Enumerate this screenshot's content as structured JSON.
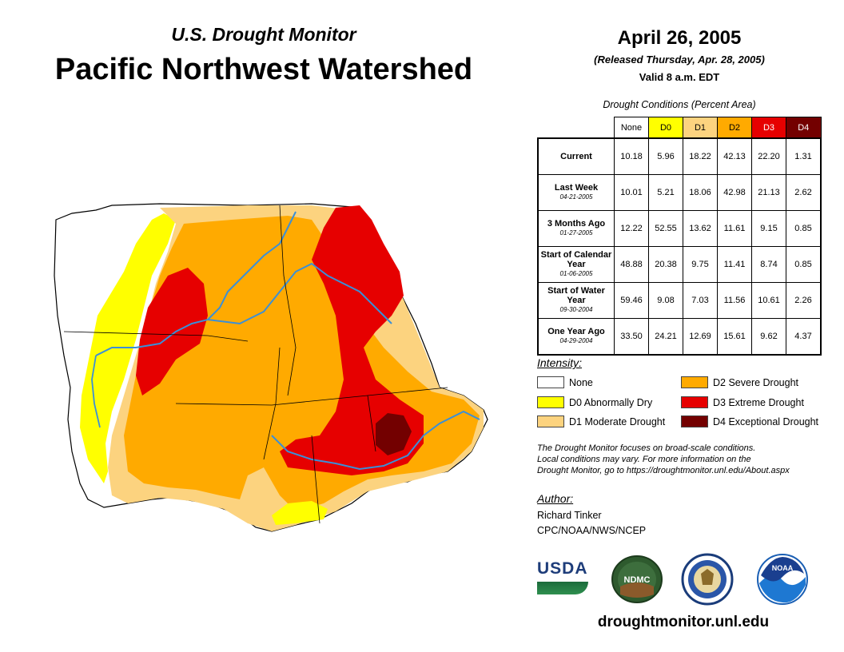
{
  "header": {
    "subtitle": "U.S. Drought Monitor",
    "title": "Pacific Northwest Watershed",
    "date": "April 26, 2005",
    "released": "(Released Thursday, Apr. 28, 2005)",
    "valid": "Valid 8 a.m. EDT"
  },
  "table": {
    "caption": "Drought Conditions (Percent Area)",
    "columns": [
      "None",
      "D0",
      "D1",
      "D2",
      "D3",
      "D4"
    ],
    "column_colors": [
      "#ffffff",
      "#ffff00",
      "#fcd37f",
      "#ffaa00",
      "#e60000",
      "#730000"
    ],
    "rows": [
      {
        "label": "Current",
        "date": "",
        "values": [
          "10.18",
          "5.96",
          "18.22",
          "42.13",
          "22.20",
          "1.31"
        ]
      },
      {
        "label": "Last Week",
        "date": "04-21-2005",
        "values": [
          "10.01",
          "5.21",
          "18.06",
          "42.98",
          "21.13",
          "2.62"
        ]
      },
      {
        "label": "3 Months Ago",
        "date": "01-27-2005",
        "values": [
          "12.22",
          "52.55",
          "13.62",
          "11.61",
          "9.15",
          "0.85"
        ]
      },
      {
        "label": "Start of Calendar Year",
        "date": "01-06-2005",
        "values": [
          "48.88",
          "20.38",
          "9.75",
          "11.41",
          "8.74",
          "0.85"
        ]
      },
      {
        "label": "Start of Water Year",
        "date": "09-30-2004",
        "values": [
          "59.46",
          "9.08",
          "7.03",
          "11.56",
          "10.61",
          "2.26"
        ]
      },
      {
        "label": "One Year Ago",
        "date": "04-29-2004",
        "values": [
          "33.50",
          "24.21",
          "12.69",
          "15.61",
          "9.62",
          "4.37"
        ]
      }
    ]
  },
  "legend": {
    "title": "Intensity:",
    "items": [
      {
        "label": "None",
        "color": "#ffffff"
      },
      {
        "label": "D0 Abnormally Dry",
        "color": "#ffff00"
      },
      {
        "label": "D1 Moderate Drought",
        "color": "#fcd37f"
      },
      {
        "label": "D2 Severe Drought",
        "color": "#ffaa00"
      },
      {
        "label": "D3 Extreme Drought",
        "color": "#e60000"
      },
      {
        "label": "D4 Exceptional Drought",
        "color": "#730000"
      }
    ]
  },
  "note": {
    "line1": "The Drought Monitor focuses on broad-scale conditions.",
    "line2": "Local conditions may vary. For more information on the",
    "line3": "Drought Monitor, go to https://droughtmonitor.unl.edu/About.aspx"
  },
  "author": {
    "title": "Author:",
    "name": "Richard Tinker",
    "org": "CPC/NOAA/NWS/NCEP"
  },
  "logos": {
    "usda": "USDA",
    "ndmc": "NDMC",
    "noaa": "NOAA"
  },
  "url": "droughtmonitor.unl.edu",
  "map_colors": {
    "none": "#ffffff",
    "d0": "#ffff00",
    "d1": "#fcd37f",
    "d2": "#ffaa00",
    "d3": "#e60000",
    "d4": "#730000",
    "river": "#3a8fd8",
    "border": "#000000"
  }
}
